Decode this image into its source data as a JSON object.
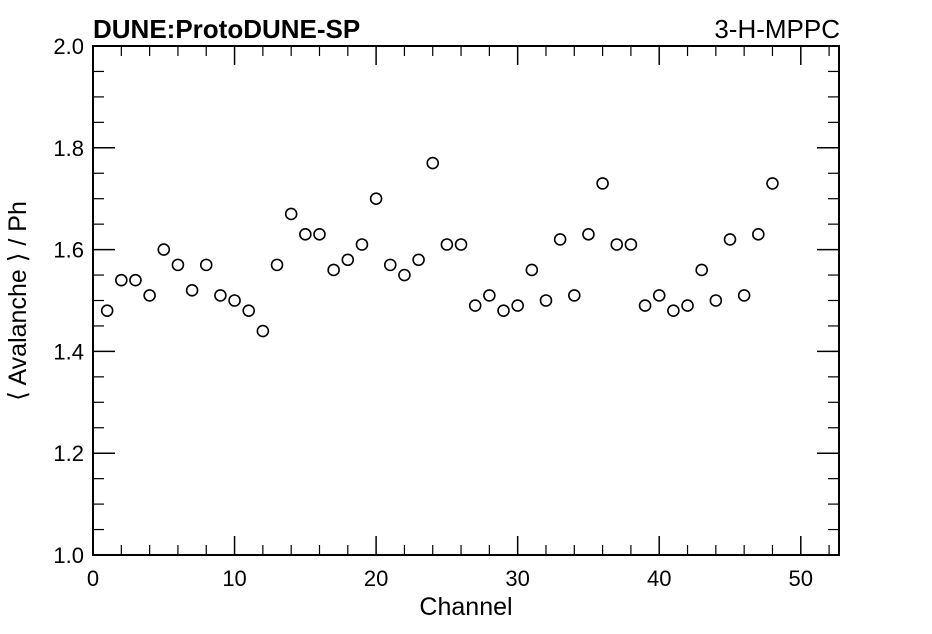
{
  "chart_data": {
    "type": "scatter",
    "title": "DUNE:ProtoDUNE-SP",
    "subtitle": "3-H-MPPC",
    "xlabel": "Channel",
    "ylabel": "⟨ Avalanche ⟩ / Ph",
    "xlim": [
      0,
      52.7
    ],
    "ylim": [
      1.0,
      2.0
    ],
    "x_ticks": [
      0,
      10,
      20,
      30,
      40,
      50
    ],
    "x_tick_labels": [
      "0",
      "10",
      "20",
      "30",
      "40",
      "50"
    ],
    "y_ticks": [
      1.0,
      1.2,
      1.4,
      1.6,
      1.8,
      2.0
    ],
    "y_tick_labels": [
      "1.0",
      "1.2",
      "1.4",
      "1.6",
      "1.8",
      "2.0"
    ],
    "grid": false,
    "marker": "open-circle",
    "colors": {
      "marker": "#000000",
      "axis": "#000000",
      "background": "#ffffff"
    },
    "x": [
      1,
      2,
      3,
      4,
      5,
      6,
      7,
      8,
      9,
      10,
      11,
      12,
      13,
      14,
      15,
      16,
      17,
      18,
      19,
      20,
      21,
      22,
      23,
      24,
      25,
      26,
      27,
      28,
      29,
      30,
      31,
      32,
      33,
      34,
      35,
      36,
      37,
      38,
      39,
      40,
      41,
      42,
      43,
      44,
      45,
      46,
      47,
      48
    ],
    "y": [
      1.48,
      1.54,
      1.54,
      1.51,
      1.6,
      1.57,
      1.52,
      1.57,
      1.51,
      1.5,
      1.48,
      1.44,
      1.57,
      1.67,
      1.63,
      1.63,
      1.56,
      1.58,
      1.61,
      1.7,
      1.57,
      1.55,
      1.58,
      1.77,
      1.61,
      1.61,
      1.49,
      1.51,
      1.48,
      1.49,
      1.56,
      1.5,
      1.62,
      1.51,
      1.63,
      1.73,
      1.61,
      1.61,
      1.49,
      1.51,
      1.48,
      1.49,
      1.56,
      1.5,
      1.62,
      1.51,
      1.63,
      1.73
    ]
  }
}
